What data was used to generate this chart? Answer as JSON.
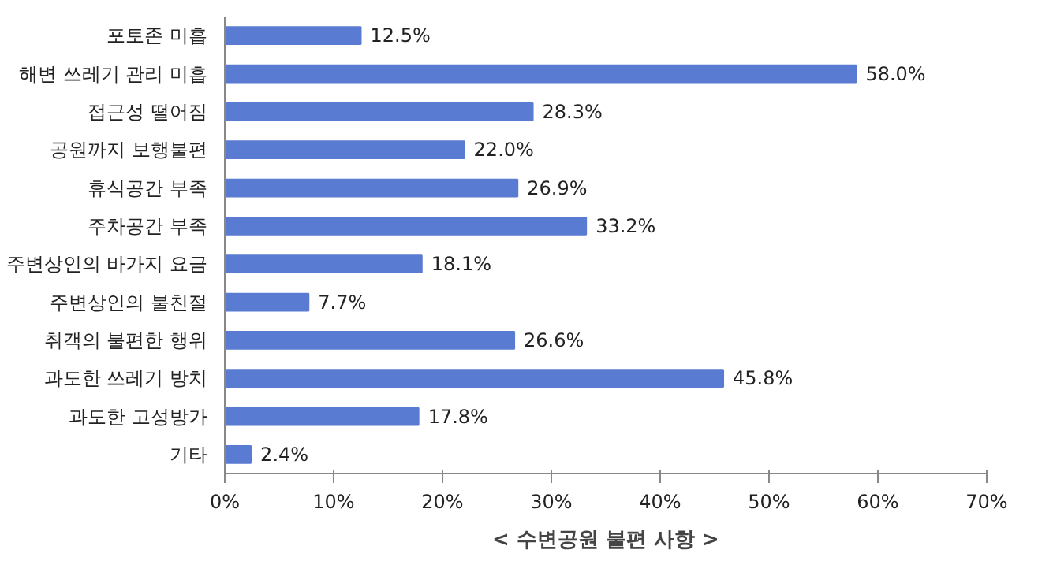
{
  "chart_data": {
    "type": "bar",
    "orientation": "horizontal",
    "title": "< 수변공원 불편 사항 >",
    "categories": [
      "포토존 미흡",
      "해변 쓰레기 관리 미흡",
      "접근성 떨어짐",
      "공원까지 보행불편",
      "휴식공간 부족",
      "주차공간 부족",
      "주변상인의 바가지 요금",
      "주변상인의 불친절",
      "취객의 불편한 행위",
      "과도한 쓰레기 방치",
      "과도한 고성방가",
      "기타"
    ],
    "values": [
      12.5,
      58.0,
      28.3,
      22.0,
      26.9,
      33.2,
      18.1,
      7.7,
      26.6,
      45.8,
      17.8,
      2.4
    ],
    "value_labels": [
      "12.5%",
      "58.0%",
      "28.3%",
      "22.0%",
      "26.9%",
      "33.2%",
      "18.1%",
      "7.7%",
      "26.6%",
      "45.8%",
      "17.8%",
      "2.4%"
    ],
    "color": "#5a7bd2",
    "xlim": [
      0,
      70
    ],
    "xticks": [
      {
        "value": 0,
        "label": "0%"
      },
      {
        "value": 10,
        "label": "10%"
      },
      {
        "value": 20,
        "label": "20%"
      },
      {
        "value": 30,
        "label": "30%"
      },
      {
        "value": 40,
        "label": "40%"
      },
      {
        "value": 50,
        "label": "50%"
      },
      {
        "value": 60,
        "label": "60%"
      },
      {
        "value": 70,
        "label": "70%"
      }
    ],
    "grid": false
  }
}
